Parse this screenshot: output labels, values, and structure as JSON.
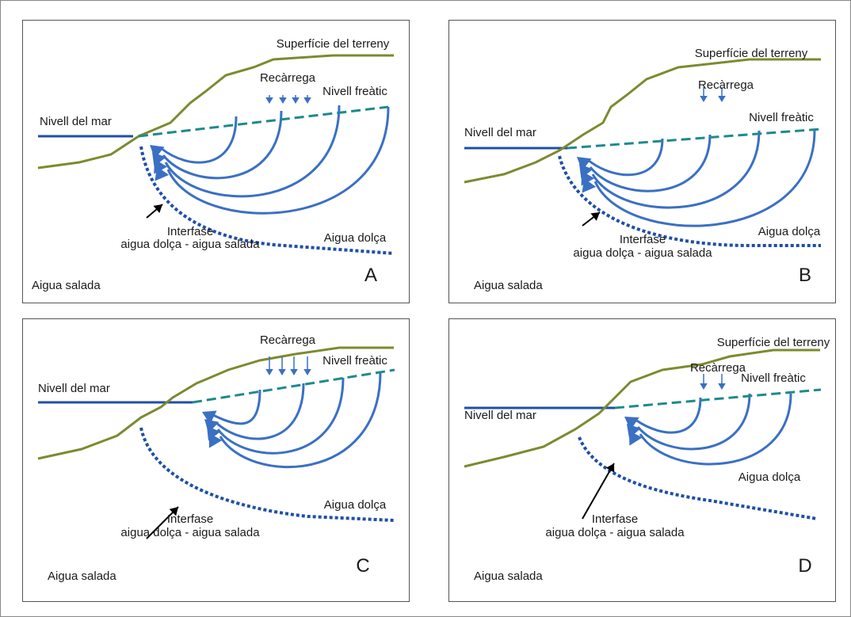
{
  "panels": [
    {
      "letter": "A",
      "surface": "Superfície del terreny",
      "recharge": "Recàrrega",
      "water_table": "Nivell freàtic",
      "sea_level": "Nivell del mar",
      "interface": [
        "Interfase",
        "aigua dolça - aigua salada"
      ],
      "fresh_water": "Aigua dolça",
      "salt_water": "Aigua salada"
    },
    {
      "letter": "B",
      "surface": "Superfície del terreny",
      "recharge": "Recàrrega",
      "water_table": "Nivell freàtic",
      "sea_level": "Nivell del mar",
      "interface": [
        "Interfase",
        "aigua dolça - aigua salada"
      ],
      "fresh_water": "Aigua dolça",
      "salt_water": "Aigua salada"
    },
    {
      "letter": "C",
      "recharge": "Recàrrega",
      "water_table": "Nivell freàtic",
      "sea_level": "Nivell del mar",
      "interface": [
        "Interfase",
        "aigua dolça - aigua salada"
      ],
      "fresh_water": "Aigua dolça",
      "salt_water": "Aigua salada"
    },
    {
      "letter": "D",
      "surface": "Superfície del terreny",
      "recharge": "Recàrrega",
      "water_table": "Nivell freàtic",
      "sea_level": "Nivell del mar",
      "interface": [
        "Interfase",
        "aigua dolça - aigua salada"
      ],
      "fresh_water": "Aigua dolça",
      "salt_water": "Aigua salada"
    }
  ]
}
